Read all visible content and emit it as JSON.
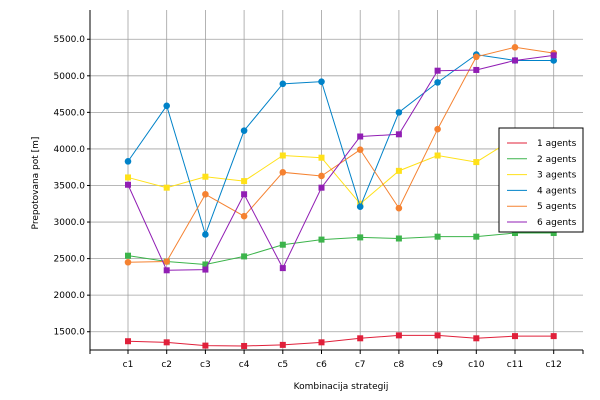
{
  "chart_data": {
    "type": "line",
    "title": "",
    "xlabel": "Kombinacija strategij",
    "ylabel": "Prepotovana pot [m]",
    "categories": [
      "c1",
      "c2",
      "c3",
      "c4",
      "c5",
      "c6",
      "c7",
      "c8",
      "c9",
      "c10",
      "c11",
      "c12"
    ],
    "ylim": [
      1250,
      5900
    ],
    "y_ticks": [
      1500,
      2000,
      2500,
      3000,
      3500,
      4000,
      4500,
      5000,
      5500
    ],
    "y_tick_labels": [
      "1500.0",
      "2000.0",
      "2500.0",
      "3000.0",
      "3500.0",
      "4000.0",
      "4500.0",
      "5000.0",
      "5500.0"
    ],
    "grid": true,
    "legend_position": "right",
    "series": [
      {
        "name": "1 agents",
        "color": "#e0203a",
        "marker": "square",
        "values": [
          1370,
          1355,
          1310,
          1305,
          1320,
          1355,
          1410,
          1450,
          1450,
          1410,
          1440,
          1440
        ]
      },
      {
        "name": "2 agents",
        "color": "#3cb44b",
        "marker": "square",
        "values": [
          2540,
          2460,
          2420,
          2530,
          2690,
          2760,
          2790,
          2775,
          2800,
          2800,
          2850,
          2850
        ]
      },
      {
        "name": "3 agents",
        "color": "#ffe119",
        "marker": "square",
        "values": [
          3610,
          3470,
          3620,
          3560,
          3910,
          3880,
          3250,
          3700,
          3910,
          3820,
          4150,
          4190
        ]
      },
      {
        "name": "4 agents",
        "color": "#0082c8",
        "marker": "circle",
        "values": [
          3830,
          4590,
          2830,
          4250,
          4890,
          4920,
          3210,
          4500,
          4910,
          5290,
          5210,
          5210
        ]
      },
      {
        "name": "5 agents",
        "color": "#f58231",
        "marker": "circle",
        "values": [
          2450,
          2460,
          3380,
          3080,
          3680,
          3630,
          3990,
          3190,
          4270,
          5260,
          5390,
          5310
        ]
      },
      {
        "name": "6 agents",
        "color": "#911eb4",
        "marker": "square",
        "values": [
          3510,
          2340,
          2350,
          3380,
          2370,
          3470,
          4170,
          4200,
          5070,
          5080,
          5210,
          5280
        ]
      }
    ]
  }
}
